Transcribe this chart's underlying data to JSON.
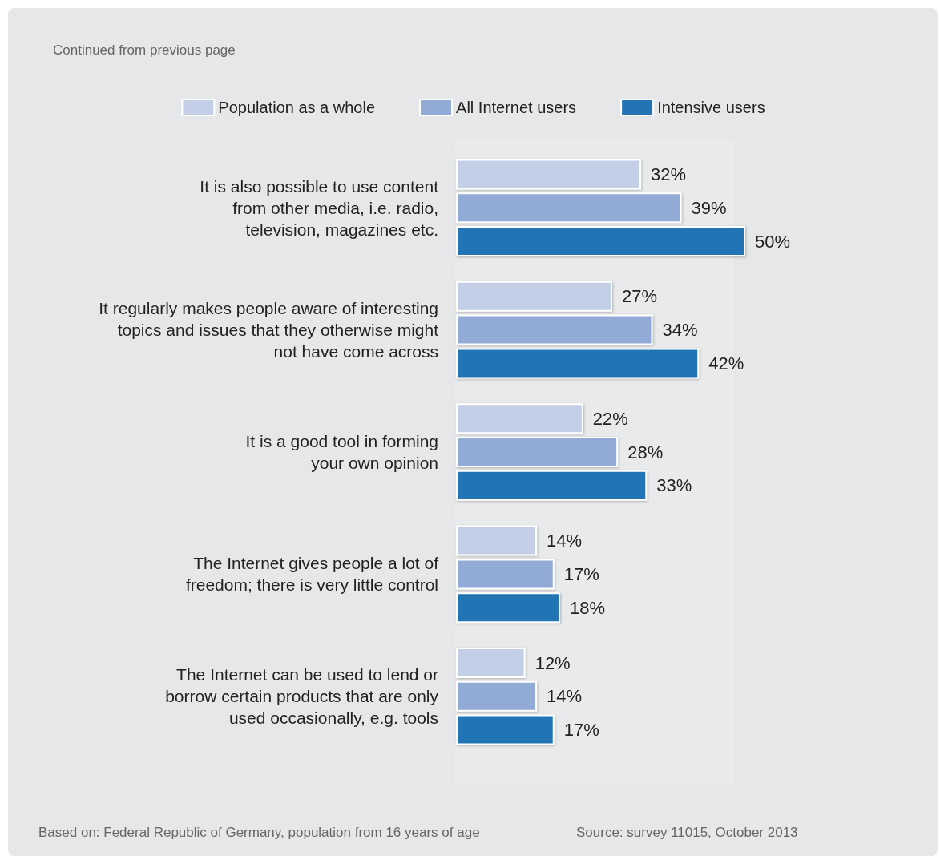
{
  "chart_data": {
    "type": "bar",
    "orientation": "horizontal",
    "legend": "top",
    "categories": [
      "It is also possible to use content\nfrom other media, i.e. radio,\ntelevision, magazines etc.",
      "It regularly makes people aware of interesting\ntopics and issues that they otherwise might\nnot have come across",
      "It is a good tool in forming\nyour own opinion",
      "The Internet gives people a lot of\nfreedom; there is very little control",
      "The Internet can be used to lend or\nborrow certain products that are only\nused occasionally, e.g. tools"
    ],
    "series": [
      {
        "name": "Population as a whole",
        "color": "#c3cfe7",
        "values": [
          32,
          27,
          22,
          14,
          12
        ],
        "value_labels": [
          "32%",
          "27%",
          "22%",
          "14%",
          "12%"
        ]
      },
      {
        "name": "All Internet users",
        "color": "#92aad6",
        "values": [
          39,
          34,
          28,
          17,
          14
        ],
        "value_labels": [
          "39%",
          "34%",
          "28%",
          "17%",
          "14%"
        ]
      },
      {
        "name": "Intensive users",
        "color": "#2474b5",
        "values": [
          50,
          42,
          33,
          18,
          17
        ],
        "value_labels": [
          "50%",
          "42%",
          "33%",
          "18%",
          "17%"
        ]
      }
    ],
    "annotations": [
      "Continued from previous page",
      "Based on: Federal Republic of Germany, population from 16 years of age",
      "Source: survey 11015, October 2013"
    ]
  }
}
